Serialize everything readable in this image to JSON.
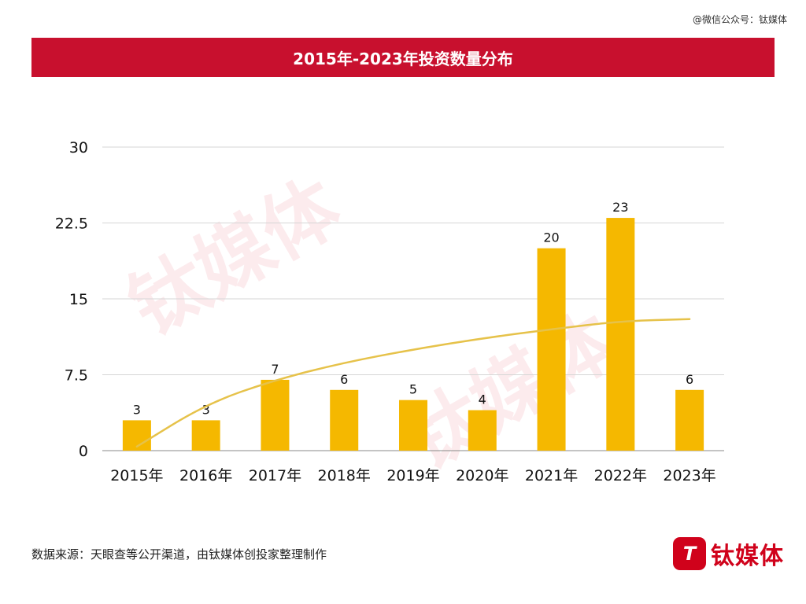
{
  "wechat_label": "@微信公众号：钛媒体",
  "title": "2015年-2023年投资数量分布",
  "source": "数据来源：天眼查等公开渠道，由钛媒体创投家整理制作",
  "logo": {
    "mark": "T",
    "text": "钛媒体"
  },
  "watermark": "钛媒体",
  "colors": {
    "bar": "#f5b800",
    "trend": "#e6c24a",
    "title_bg": "#c8102e",
    "brand": "#d0021b"
  },
  "chart_data": {
    "type": "bar",
    "categories": [
      "2015年",
      "2016年",
      "2017年",
      "2018年",
      "2019年",
      "2020年",
      "2021年",
      "2022年",
      "2023年"
    ],
    "values": [
      3,
      3,
      7,
      6,
      5,
      4,
      20,
      23,
      6
    ],
    "ylim": [
      0,
      30
    ],
    "yticks": [
      "0",
      "7.5",
      "15",
      "22.5",
      "30"
    ],
    "grid": true,
    "trendline": "logarithmic",
    "trend_values": [
      0.4,
      4.6,
      7.0,
      8.7,
      10.0,
      11.1,
      12.0,
      12.8,
      13.0
    ]
  }
}
